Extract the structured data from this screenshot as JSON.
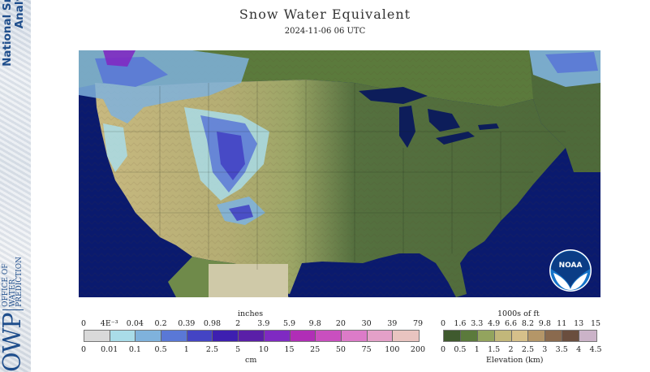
{
  "header": {
    "title": "Snow Water Equivalent",
    "timestamp": "2024-11-06 06 UTC"
  },
  "sidebar": {
    "title_line1": "National Snow",
    "title_line2": "Analysis",
    "office_acronym": "OWP",
    "office_line1": "OFFICE OF",
    "office_line2": "WATER",
    "office_line3": "PREDICTION"
  },
  "logo": {
    "name": "noaa-logo",
    "text": "NOAA"
  },
  "swe_legend": {
    "top_unit": "inches",
    "bottom_unit": "cm",
    "inches_ticks": [
      "0",
      "4E⁻³",
      "0.04",
      "0.2",
      "0.39",
      "0.98",
      "2",
      "3.9",
      "5.9",
      "9.8",
      "20",
      "30",
      "39",
      "79"
    ],
    "cm_ticks": [
      "0",
      "0.01",
      "0.1",
      "0.5",
      "1",
      "2.5",
      "5",
      "10",
      "15",
      "25",
      "50",
      "75",
      "100",
      "200"
    ],
    "colors": [
      "#d9d9d9",
      "#a9dce8",
      "#7fb2dc",
      "#5a78d6",
      "#4444c4",
      "#3d1fb0",
      "#5a1fa8",
      "#7f2ac2",
      "#b02eb6",
      "#c94fbf",
      "#dc7bc8",
      "#e4a0c8",
      "#e9c4c0"
    ]
  },
  "elev_legend": {
    "top_unit": "1000s of ft",
    "bottom_unit": "Elevation (km)",
    "ft_ticks": [
      "0",
      "1.6",
      "3.3",
      "4.9",
      "6.6",
      "8.2",
      "9.8",
      "11",
      "13",
      "15"
    ],
    "km_ticks": [
      "0",
      "0.5",
      "1",
      "1.5",
      "2",
      "2.5",
      "3",
      "3.5",
      "4",
      "4.5"
    ],
    "colors": [
      "#3f5a2e",
      "#5b7a3c",
      "#93a45e",
      "#c2b77a",
      "#d6c08a",
      "#b49668",
      "#8a6a4e",
      "#6a4e3e",
      "#cbb3c8"
    ]
  },
  "map": {
    "land_low_color": "#55703f",
    "land_mid_color": "#9ba566",
    "land_high_color": "#c8b980",
    "water_color": "#0a1a6e",
    "lake_color": "#0d1d5a",
    "snow_colors": [
      "#a9dce8",
      "#7fb2dc",
      "#5a78d6",
      "#4444c4",
      "#7f2ac2"
    ]
  }
}
